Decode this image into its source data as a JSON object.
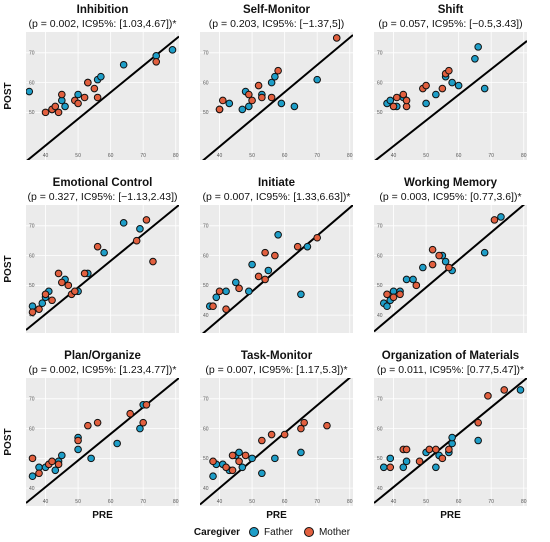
{
  "colors": {
    "Father": "#1e9ec8",
    "Mother": "#e2603f",
    "panel_bg": "#ebebeb",
    "grid": "#ffffff",
    "line": "#000000"
  },
  "legend": {
    "title": "Caregiver",
    "entries": [
      "Father",
      "Mother"
    ]
  },
  "chart_data": [
    {
      "type": "scatter",
      "title": "Inhibition",
      "subtitle": "(p = 0.002, IC95%: [1.03,4.67])*",
      "xlabel": "",
      "ylabel": "POST",
      "xlim": [
        34,
        81
      ],
      "ylim": [
        34,
        77
      ],
      "xticks": [
        40,
        50,
        60,
        70,
        80
      ],
      "yticks": [
        50,
        60,
        70
      ],
      "show_x_ticks": true,
      "regression": [
        [
          34,
          33.5
        ],
        [
          81,
          75.5
        ]
      ],
      "series": [
        {
          "name": "Father",
          "points": [
            [
              35,
              57
            ],
            [
              42,
              51
            ],
            [
              45,
              54
            ],
            [
              46,
              52
            ],
            [
              50,
              56
            ],
            [
              53,
              60
            ],
            [
              56,
              61
            ],
            [
              57,
              62
            ],
            [
              64,
              66
            ],
            [
              74,
              69
            ],
            [
              79,
              71
            ]
          ]
        },
        {
          "name": "Mother",
          "points": [
            [
              40,
              50
            ],
            [
              42,
              51
            ],
            [
              43,
              52
            ],
            [
              44,
              50
            ],
            [
              45,
              56
            ],
            [
              49,
              54
            ],
            [
              50,
              53
            ],
            [
              52,
              55
            ],
            [
              53,
              60
            ],
            [
              55,
              58
            ],
            [
              56,
              55
            ],
            [
              74,
              67
            ]
          ]
        }
      ]
    },
    {
      "type": "scatter",
      "title": "Self-Monitor",
      "subtitle": "(p = 0.203, IC95%: [−1.37,5])",
      "xlabel": "",
      "ylabel": "",
      "xlim": [
        34,
        81
      ],
      "ylim": [
        34,
        77
      ],
      "xticks": [
        40,
        50,
        60,
        70,
        80
      ],
      "yticks": [
        50,
        60,
        70
      ],
      "show_x_ticks": true,
      "regression": [
        [
          34,
          33
        ],
        [
          81,
          76
        ]
      ],
      "series": [
        {
          "name": "Father",
          "points": [
            [
              40,
              51
            ],
            [
              43,
              53
            ],
            [
              47,
              51
            ],
            [
              48,
              57
            ],
            [
              49,
              52
            ],
            [
              53,
              56
            ],
            [
              56,
              60
            ],
            [
              57,
              62
            ],
            [
              59,
              53
            ],
            [
              63,
              52
            ],
            [
              70,
              61
            ]
          ]
        },
        {
          "name": "Mother",
          "points": [
            [
              40,
              51
            ],
            [
              41,
              54
            ],
            [
              49,
              56
            ],
            [
              50,
              54
            ],
            [
              52,
              59
            ],
            [
              53,
              55
            ],
            [
              56,
              55
            ],
            [
              58,
              64
            ],
            [
              76,
              75
            ]
          ]
        }
      ]
    },
    {
      "type": "scatter",
      "title": "Shift",
      "subtitle": "(p = 0.057, IC95%: [−0.5,3.43])",
      "xlabel": "",
      "ylabel": "",
      "xlim": [
        34,
        81
      ],
      "ylim": [
        34,
        77
      ],
      "xticks": [
        40,
        50,
        60,
        70,
        80
      ],
      "yticks": [
        50,
        60,
        70
      ],
      "show_x_ticks": true,
      "regression": [
        [
          34,
          33.5
        ],
        [
          81,
          74
        ]
      ],
      "series": [
        {
          "name": "Father",
          "points": [
            [
              38,
              53
            ],
            [
              39,
              54
            ],
            [
              41,
              52
            ],
            [
              43,
              55
            ],
            [
              50,
              53
            ],
            [
              53,
              56
            ],
            [
              56,
              62
            ],
            [
              58,
              60
            ],
            [
              60,
              59
            ],
            [
              65,
              68
            ],
            [
              66,
              72
            ],
            [
              68,
              58
            ]
          ]
        },
        {
          "name": "Mother",
          "points": [
            [
              40,
              52
            ],
            [
              41,
              55
            ],
            [
              43,
              56
            ],
            [
              44,
              52
            ],
            [
              44,
              54
            ],
            [
              49,
              58
            ],
            [
              50,
              59
            ],
            [
              55,
              58
            ],
            [
              56,
              63
            ],
            [
              57,
              64
            ]
          ]
        }
      ]
    },
    {
      "type": "scatter",
      "title": "Emotional Control",
      "subtitle": "(p = 0.327, IC95%: [−1.13,2.43])",
      "xlabel": "",
      "ylabel": "POST",
      "xlim": [
        34,
        81
      ],
      "ylim": [
        34,
        77
      ],
      "xticks": [
        40,
        50,
        60,
        70,
        80
      ],
      "yticks": [
        40,
        50,
        60,
        70
      ],
      "show_x_ticks": false,
      "regression": [
        [
          34,
          35
        ],
        [
          81,
          77
        ]
      ],
      "series": [
        {
          "name": "Father",
          "points": [
            [
              36,
              43
            ],
            [
              39,
              44
            ],
            [
              40,
              46
            ],
            [
              41,
              48
            ],
            [
              46,
              52
            ],
            [
              50,
              48
            ],
            [
              53,
              54
            ],
            [
              58,
              61
            ],
            [
              64,
              71
            ],
            [
              69,
              69
            ]
          ]
        },
        {
          "name": "Mother",
          "points": [
            [
              36,
              41
            ],
            [
              38,
              42
            ],
            [
              40,
              47
            ],
            [
              42,
              45
            ],
            [
              44,
              54
            ],
            [
              45,
              51
            ],
            [
              47,
              50
            ],
            [
              48,
              47
            ],
            [
              49,
              48
            ],
            [
              52,
              54
            ],
            [
              56,
              63
            ],
            [
              68,
              65
            ],
            [
              71,
              72
            ],
            [
              73,
              58
            ]
          ]
        }
      ]
    },
    {
      "type": "scatter",
      "title": "Initiate",
      "subtitle": "(p = 0.007, IC95%: [1.33,6.63])*",
      "xlabel": "",
      "ylabel": "",
      "xlim": [
        34,
        81
      ],
      "ylim": [
        34,
        77
      ],
      "xticks": [
        40,
        50,
        60,
        70,
        80
      ],
      "yticks": [
        40,
        50,
        60,
        70
      ],
      "show_x_ticks": false,
      "regression": [
        [
          34,
          33
        ],
        [
          81,
          77
        ]
      ],
      "series": [
        {
          "name": "Father",
          "points": [
            [
              37,
              43
            ],
            [
              39,
              46
            ],
            [
              42,
              48
            ],
            [
              45,
              51
            ],
            [
              49,
              48
            ],
            [
              50,
              57
            ],
            [
              55,
              55
            ],
            [
              58,
              67
            ],
            [
              65,
              47
            ],
            [
              67,
              63
            ]
          ]
        },
        {
          "name": "Mother",
          "points": [
            [
              38,
              43
            ],
            [
              40,
              48
            ],
            [
              42,
              42
            ],
            [
              46,
              49
            ],
            [
              52,
              53
            ],
            [
              54,
              52
            ],
            [
              54,
              61
            ],
            [
              57,
              60
            ],
            [
              64,
              63
            ],
            [
              70,
              66
            ]
          ]
        }
      ]
    },
    {
      "type": "scatter",
      "title": "Working Memory",
      "subtitle": "(p = 0.003, IC95%: [0.77,3.6])*",
      "xlabel": "",
      "ylabel": "",
      "xlim": [
        34,
        81
      ],
      "ylim": [
        34,
        77
      ],
      "xticks": [
        40,
        50,
        60,
        70,
        80
      ],
      "yticks": [
        40,
        50,
        60,
        70
      ],
      "show_x_ticks": false,
      "regression": [
        [
          34,
          34.5
        ],
        [
          81,
          78
        ]
      ],
      "series": [
        {
          "name": "Father",
          "points": [
            [
              37,
              44
            ],
            [
              38,
              43
            ],
            [
              39,
              45
            ],
            [
              40,
              48
            ],
            [
              42,
              48
            ],
            [
              44,
              52
            ],
            [
              46,
              52
            ],
            [
              49,
              56
            ],
            [
              55,
              60
            ],
            [
              56,
              58
            ],
            [
              58,
              55
            ],
            [
              68,
              61
            ],
            [
              73,
              73
            ]
          ]
        },
        {
          "name": "Mother",
          "points": [
            [
              38,
              47
            ],
            [
              40,
              46
            ],
            [
              42,
              47
            ],
            [
              47,
              50
            ],
            [
              52,
              62
            ],
            [
              52,
              57
            ],
            [
              54,
              60
            ],
            [
              57,
              56
            ],
            [
              71,
              72
            ]
          ]
        }
      ]
    },
    {
      "type": "scatter",
      "title": "Plan/Organize",
      "subtitle": "(p = 0.002, IC95%: [1.23,4.77])*",
      "xlabel": "PRE",
      "ylabel": "POST",
      "xlim": [
        34,
        81
      ],
      "ylim": [
        34,
        77
      ],
      "xticks": [
        40,
        50,
        60,
        70,
        80
      ],
      "yticks": [
        40,
        50,
        60,
        70
      ],
      "show_x_ticks": true,
      "regression": [
        [
          34,
          35
        ],
        [
          81,
          77
        ]
      ],
      "series": [
        {
          "name": "Father",
          "points": [
            [
              36,
              44
            ],
            [
              38,
              47
            ],
            [
              40,
              47
            ],
            [
              43,
              46
            ],
            [
              44,
              49
            ],
            [
              45,
              51
            ],
            [
              50,
              53
            ],
            [
              50,
              57
            ],
            [
              54,
              50
            ],
            [
              62,
              55
            ],
            [
              69,
              60
            ],
            [
              70,
              68
            ]
          ]
        },
        {
          "name": "Mother",
          "points": [
            [
              36,
              50
            ],
            [
              38,
              45
            ],
            [
              41,
              48
            ],
            [
              42,
              49
            ],
            [
              44,
              48
            ],
            [
              50,
              56
            ],
            [
              53,
              61
            ],
            [
              56,
              62
            ],
            [
              66,
              65
            ],
            [
              70,
              62
            ],
            [
              71,
              68
            ]
          ]
        }
      ]
    },
    {
      "type": "scatter",
      "title": "Task-Monitor",
      "subtitle": "(p = 0.007, IC95%: [1.17,5.3])*",
      "xlabel": "PRE",
      "ylabel": "",
      "xlim": [
        34,
        81
      ],
      "ylim": [
        34,
        77
      ],
      "xticks": [
        40,
        50,
        60,
        70,
        80
      ],
      "yticks": [
        40,
        50,
        60,
        70
      ],
      "show_x_ticks": true,
      "regression": [
        [
          34,
          34.5
        ],
        [
          81,
          78
        ]
      ],
      "series": [
        {
          "name": "Father",
          "points": [
            [
              38,
              44
            ],
            [
              39,
              48
            ],
            [
              41,
              48
            ],
            [
              43,
              46
            ],
            [
              45,
              51
            ],
            [
              46,
              52
            ],
            [
              47,
              47
            ],
            [
              50,
              50
            ],
            [
              53,
              45
            ],
            [
              57,
              50
            ],
            [
              65,
              52
            ]
          ]
        },
        {
          "name": "Mother",
          "points": [
            [
              38,
              49
            ],
            [
              42,
              47
            ],
            [
              44,
              46
            ],
            [
              44,
              51
            ],
            [
              46,
              49
            ],
            [
              48,
              51
            ],
            [
              53,
              56
            ],
            [
              56,
              58
            ],
            [
              60,
              58
            ],
            [
              65,
              60
            ],
            [
              66,
              62
            ],
            [
              73,
              61
            ]
          ]
        }
      ]
    },
    {
      "type": "scatter",
      "title": "Organization of Materials",
      "subtitle": "(p = 0.011, IC95%: [0.77,5.47])*",
      "xlabel": "PRE",
      "ylabel": "",
      "xlim": [
        34,
        81
      ],
      "ylim": [
        34,
        77
      ],
      "xticks": [
        40,
        50,
        60,
        70,
        80
      ],
      "yticks": [
        40,
        50,
        60,
        70
      ],
      "show_x_ticks": true,
      "regression": [
        [
          34,
          35
        ],
        [
          81,
          77
        ]
      ],
      "series": [
        {
          "name": "Father",
          "points": [
            [
              37,
              47
            ],
            [
              39,
              50
            ],
            [
              43,
              47
            ],
            [
              44,
              49
            ],
            [
              50,
              52
            ],
            [
              53,
              47
            ],
            [
              54,
              51
            ],
            [
              57,
              52
            ],
            [
              58,
              55
            ],
            [
              58,
              57
            ],
            [
              66,
              56
            ],
            [
              79,
              73
            ]
          ]
        },
        {
          "name": "Mother",
          "points": [
            [
              39,
              47
            ],
            [
              43,
              53
            ],
            [
              44,
              53
            ],
            [
              48,
              49
            ],
            [
              51,
              53
            ],
            [
              53,
              53
            ],
            [
              55,
              50
            ],
            [
              57,
              53
            ],
            [
              66,
              62
            ],
            [
              69,
              71
            ],
            [
              74,
              73
            ]
          ]
        }
      ]
    }
  ]
}
